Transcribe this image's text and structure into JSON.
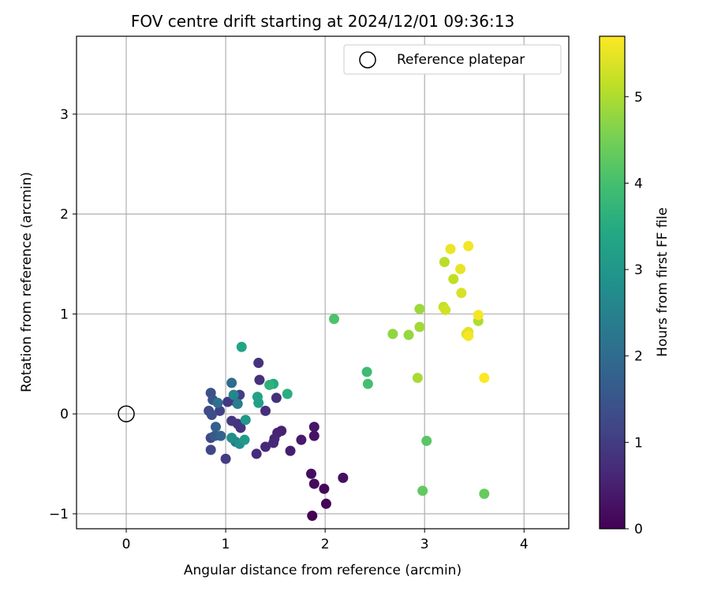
{
  "chart_data": {
    "type": "scatter",
    "title": "FOV centre drift starting at 2024/12/01 09:36:13",
    "xlabel": "Angular distance from reference (arcmin)",
    "ylabel": "Rotation from reference (arcmin)",
    "xlim": [
      -0.5,
      4.45
    ],
    "ylim": [
      -1.15,
      3.78
    ],
    "xticks": [
      0,
      1,
      2,
      3,
      4
    ],
    "yticks": [
      -1,
      0,
      1,
      2,
      3
    ],
    "grid": true,
    "colormap": "viridis",
    "legend": {
      "placement": "top-right",
      "entries": [
        "Reference platepar"
      ]
    },
    "reference_point": {
      "x": 0,
      "y": 0,
      "label": "Reference platepar"
    },
    "colorbar": {
      "label": "Hours from first FF file",
      "range": [
        0,
        5.7
      ],
      "ticks": [
        0,
        1,
        2,
        3,
        4,
        5
      ]
    },
    "points": [
      {
        "x": 1.87,
        "y": -1.02,
        "c": 0.0
      },
      {
        "x": 2.01,
        "y": -0.9,
        "c": 0.05
      },
      {
        "x": 1.99,
        "y": -0.75,
        "c": 0.1
      },
      {
        "x": 1.89,
        "y": -0.7,
        "c": 0.15
      },
      {
        "x": 1.86,
        "y": -0.6,
        "c": 0.2
      },
      {
        "x": 2.18,
        "y": -0.64,
        "c": 0.25
      },
      {
        "x": 1.89,
        "y": -0.22,
        "c": 0.3
      },
      {
        "x": 1.89,
        "y": -0.13,
        "c": 0.35
      },
      {
        "x": 1.76,
        "y": -0.26,
        "c": 0.4
      },
      {
        "x": 1.65,
        "y": -0.37,
        "c": 0.45
      },
      {
        "x": 1.56,
        "y": -0.17,
        "c": 0.5
      },
      {
        "x": 1.52,
        "y": -0.19,
        "c": 0.55
      },
      {
        "x": 1.49,
        "y": -0.25,
        "c": 0.6
      },
      {
        "x": 1.48,
        "y": -0.29,
        "c": 0.62
      },
      {
        "x": 1.4,
        "y": -0.33,
        "c": 0.65
      },
      {
        "x": 1.31,
        "y": -0.4,
        "c": 0.7
      },
      {
        "x": 1.4,
        "y": 0.03,
        "c": 0.75
      },
      {
        "x": 1.51,
        "y": 0.16,
        "c": 0.78
      },
      {
        "x": 1.34,
        "y": 0.34,
        "c": 0.8
      },
      {
        "x": 1.33,
        "y": 0.51,
        "c": 0.82
      },
      {
        "x": 1.15,
        "y": -0.14,
        "c": 0.85
      },
      {
        "x": 1.12,
        "y": -0.1,
        "c": 0.88
      },
      {
        "x": 1.06,
        "y": -0.07,
        "c": 0.9
      },
      {
        "x": 1.09,
        "y": 0.13,
        "c": 0.92
      },
      {
        "x": 1.02,
        "y": 0.12,
        "c": 0.95
      },
      {
        "x": 1.0,
        "y": -0.45,
        "c": 1.0
      },
      {
        "x": 1.14,
        "y": 0.19,
        "c": 1.05
      },
      {
        "x": 0.94,
        "y": 0.03,
        "c": 1.1
      },
      {
        "x": 0.85,
        "y": -0.36,
        "c": 1.2
      },
      {
        "x": 0.85,
        "y": -0.24,
        "c": 1.25
      },
      {
        "x": 0.83,
        "y": 0.03,
        "c": 1.3
      },
      {
        "x": 0.86,
        "y": -0.01,
        "c": 1.35
      },
      {
        "x": 0.85,
        "y": 0.21,
        "c": 1.4
      },
      {
        "x": 0.87,
        "y": 0.14,
        "c": 1.5
      },
      {
        "x": 0.89,
        "y": -0.22,
        "c": 1.6
      },
      {
        "x": 0.9,
        "y": -0.13,
        "c": 1.7
      },
      {
        "x": 0.95,
        "y": -0.22,
        "c": 1.8
      },
      {
        "x": 1.06,
        "y": 0.31,
        "c": 2.0
      },
      {
        "x": 0.92,
        "y": 0.11,
        "c": 2.1
      },
      {
        "x": 1.1,
        "y": -0.28,
        "c": 2.3
      },
      {
        "x": 1.12,
        "y": 0.1,
        "c": 2.4
      },
      {
        "x": 1.08,
        "y": 0.19,
        "c": 2.6
      },
      {
        "x": 1.06,
        "y": -0.24,
        "c": 2.75
      },
      {
        "x": 1.14,
        "y": -0.3,
        "c": 2.85
      },
      {
        "x": 1.2,
        "y": -0.06,
        "c": 3.0
      },
      {
        "x": 1.19,
        "y": -0.26,
        "c": 3.1
      },
      {
        "x": 1.33,
        "y": 0.11,
        "c": 3.2
      },
      {
        "x": 1.32,
        "y": 0.17,
        "c": 3.25
      },
      {
        "x": 1.16,
        "y": 0.67,
        "c": 3.35
      },
      {
        "x": 1.48,
        "y": 0.3,
        "c": 3.45
      },
      {
        "x": 1.62,
        "y": 0.2,
        "c": 3.55
      },
      {
        "x": 1.44,
        "y": 0.29,
        "c": 3.65
      },
      {
        "x": 2.42,
        "y": 0.42,
        "c": 3.9
      },
      {
        "x": 2.43,
        "y": 0.3,
        "c": 4.0
      },
      {
        "x": 2.09,
        "y": 0.95,
        "c": 4.1
      },
      {
        "x": 3.02,
        "y": -0.27,
        "c": 4.2
      },
      {
        "x": 2.98,
        "y": -0.77,
        "c": 4.3
      },
      {
        "x": 3.6,
        "y": -0.8,
        "c": 4.35
      },
      {
        "x": 2.68,
        "y": 0.8,
        "c": 4.75
      },
      {
        "x": 2.84,
        "y": 0.79,
        "c": 4.8
      },
      {
        "x": 2.95,
        "y": 1.05,
        "c": 4.85
      },
      {
        "x": 2.95,
        "y": 0.87,
        "c": 4.9
      },
      {
        "x": 2.93,
        "y": 0.36,
        "c": 4.95
      },
      {
        "x": 3.54,
        "y": 0.93,
        "c": 5.0
      },
      {
        "x": 3.2,
        "y": 1.52,
        "c": 5.1
      },
      {
        "x": 3.29,
        "y": 1.35,
        "c": 5.15
      },
      {
        "x": 3.19,
        "y": 1.07,
        "c": 5.2
      },
      {
        "x": 3.21,
        "y": 1.04,
        "c": 5.3
      },
      {
        "x": 3.37,
        "y": 1.21,
        "c": 5.35
      },
      {
        "x": 3.42,
        "y": 0.8,
        "c": 5.4
      },
      {
        "x": 3.44,
        "y": 0.82,
        "c": 5.45
      },
      {
        "x": 3.36,
        "y": 1.45,
        "c": 5.5
      },
      {
        "x": 3.26,
        "y": 1.65,
        "c": 5.55
      },
      {
        "x": 3.44,
        "y": 1.68,
        "c": 5.6
      },
      {
        "x": 3.44,
        "y": 0.78,
        "c": 5.62
      },
      {
        "x": 3.54,
        "y": 0.99,
        "c": 5.65
      },
      {
        "x": 3.6,
        "y": 0.36,
        "c": 5.7
      }
    ]
  }
}
